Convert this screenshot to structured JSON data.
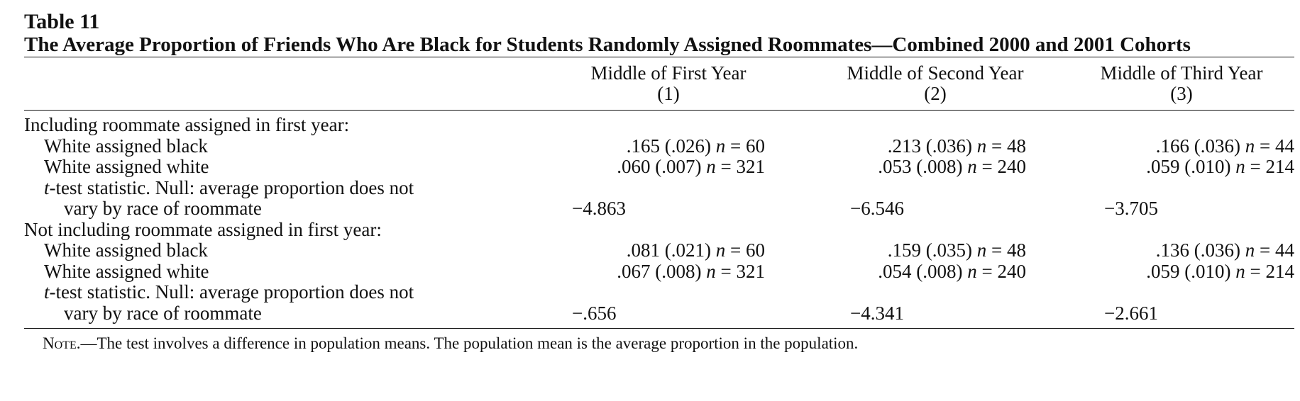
{
  "table": {
    "label": "Table 11",
    "title": "The Average Proportion of Friends Who Are Black for Students Randomly Assigned Roommates—Combined 2000 and 2001 Cohorts",
    "columns": [
      {
        "name": "Middle of First Year",
        "num": "(1)"
      },
      {
        "name": "Middle of Second Year",
        "num": "(2)"
      },
      {
        "name": "Middle of Third Year",
        "num": "(3)"
      }
    ],
    "sections": [
      {
        "heading": "Including roommate assigned in first year:",
        "rows": [
          {
            "label": "White assigned black",
            "values": [
              {
                "est": ".165 (.026)",
                "n": "60"
              },
              {
                "est": ".213 (.036)",
                "n": "48"
              },
              {
                "est": ".166 (.036)",
                "n": "44"
              }
            ]
          },
          {
            "label": "White assigned white",
            "values": [
              {
                "est": ".060 (.007)",
                "n": "321"
              },
              {
                "est": ".053 (.008)",
                "n": "240"
              },
              {
                "est": ".059 (.010)",
                "n": "214"
              }
            ]
          }
        ],
        "ttest_line1_italic": "t",
        "ttest_line1": "-test statistic. Null: average proportion does not",
        "ttest_line2": "vary by race of roommate",
        "ttest_values": [
          "−4.863",
          "−6.546",
          "−3.705"
        ]
      },
      {
        "heading": "Not including roommate assigned in first year:",
        "rows": [
          {
            "label": "White assigned black",
            "values": [
              {
                "est": ".081 (.021)",
                "n": "60"
              },
              {
                "est": ".159 (.035)",
                "n": "48"
              },
              {
                "est": ".136 (.036)",
                "n": "44"
              }
            ]
          },
          {
            "label": "White assigned white",
            "values": [
              {
                "est": ".067 (.008)",
                "n": "321"
              },
              {
                "est": ".054 (.008)",
                "n": "240"
              },
              {
                "est": ".059 (.010)",
                "n": "214"
              }
            ]
          }
        ],
        "ttest_line1_italic": "t",
        "ttest_line1": "-test statistic. Null: average proportion does not",
        "ttest_line2": "vary by race of roommate",
        "ttest_values": [
          "−.656",
          "−4.341",
          "−2.661"
        ]
      }
    ],
    "n_symbol": "n",
    "equals": "=",
    "note_label": "Note.",
    "note_text": "—The test involves a difference in population means. The population mean is the average proportion in the population."
  }
}
